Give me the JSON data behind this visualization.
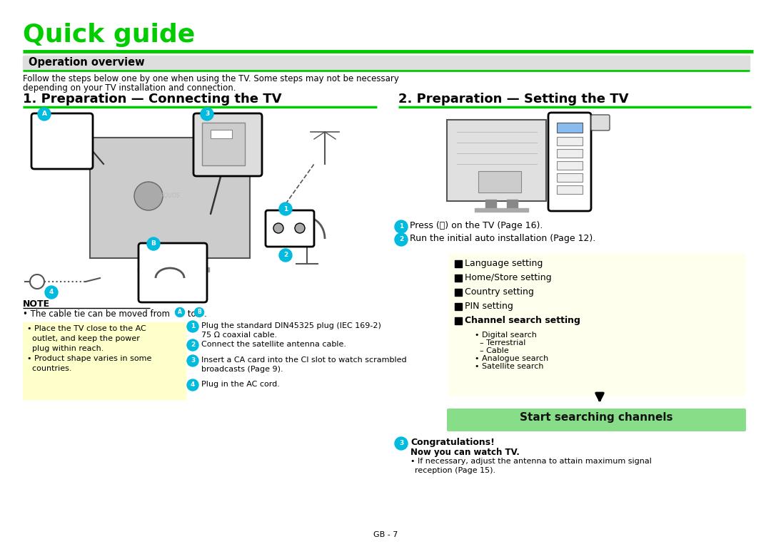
{
  "bg": "#FFFFFF",
  "green": "#00CC00",
  "cyan": "#00BBDD",
  "yellow_bg": "#FFFFCC",
  "yellow_settings_bg": "#FFFFEE",
  "green_btn": "#88DD88",
  "title": "Quick guide",
  "title_color": "#00CC00",
  "section_header": "Operation overview",
  "overview_text1": "Follow the steps below one by one when using the TV. Some steps may not be necessary",
  "overview_text2": "depending on your TV installation and connection.",
  "left_heading": "1. Preparation — Connecting the TV",
  "right_heading": "2. Preparation — Setting the TV",
  "note_title": "NOTE",
  "yellow_left_lines": [
    "• Place the TV close to the AC",
    "  outlet, and keep the power",
    "  plug within reach.",
    "• Product shape varies in some",
    "  countries."
  ],
  "conn_step1a": "Plug the standard DIN45325 plug (IEC 169-2)",
  "conn_step1b": "75 Ω coaxial cable.",
  "conn_step2": "Connect the satellite antenna cable.",
  "conn_step3a": "Insert a CA card into the CI slot to watch scrambled",
  "conn_step3b": "broadcasts (Page 9).",
  "conn_step4": "Plug in the AC cord.",
  "right_step1": "Press (⏻) on the TV (Page 16).",
  "right_step2": "Run the initial auto installation (Page 12).",
  "settings": [
    "Language setting",
    "Home/Store setting",
    "Country setting",
    "PIN setting",
    "Channel search setting"
  ],
  "sub_items": [
    "• Digital search",
    "  – Terrestrial",
    "  – Cable",
    "• Analogue search",
    "• Satellite search"
  ],
  "green_btn_label": "Start searching channels",
  "congrats": "Congratulations!",
  "now_watch": "Now you can watch TV.",
  "if_necessary": "• If necessary, adjust the antenna to attain maximum signal",
  "reception": "reception (Page 15).",
  "footer": "GB - 7"
}
